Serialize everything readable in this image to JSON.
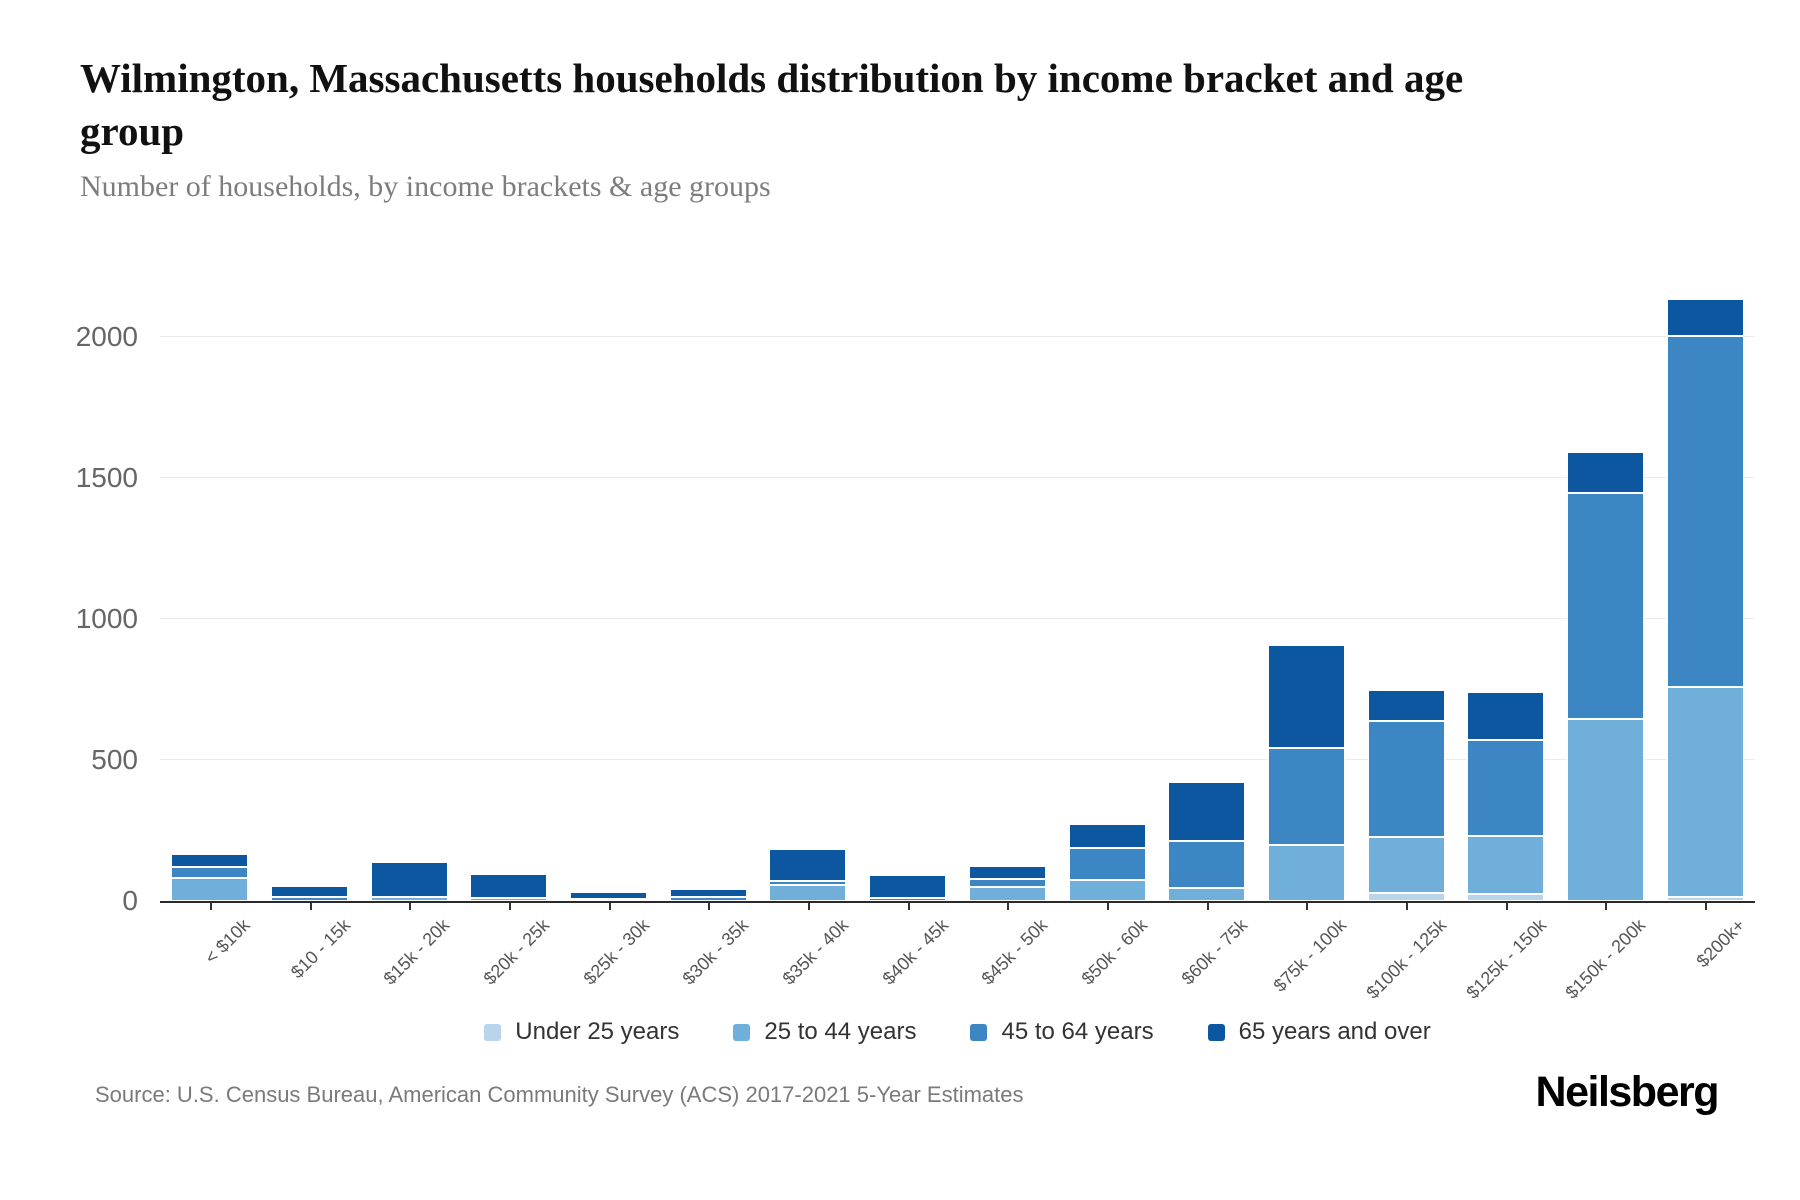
{
  "header": {
    "title": "Wilmington, Massachusetts households distribution by income bracket and age group",
    "subtitle": "Number of households, by income brackets & age groups"
  },
  "chart_data": {
    "type": "bar",
    "stacked": true,
    "title": "Wilmington, Massachusetts households distribution by income bracket and age group",
    "subtitle": "Number of households, by income brackets & age groups",
    "xlabel": "",
    "ylabel": "Number of households",
    "categories": [
      "< $10k",
      "$10 - 15k",
      "$15k - 20k",
      "$20k - 25k",
      "$25k - 30k",
      "$30k - 35k",
      "$35k - 40k",
      "$40k - 45k",
      "$45k - 50k",
      "$50k - 60k",
      "$60k - 75k",
      "$75k - 100k",
      "$100k - 125k",
      "$125k - 150k",
      "$150k - 200k",
      "$200k+"
    ],
    "series": [
      {
        "name": "Under 25 years",
        "color": "#b9d5ea",
        "values": [
          0,
          0,
          0,
          0,
          0,
          0,
          0,
          0,
          0,
          0,
          0,
          0,
          30,
          25,
          0,
          15
        ]
      },
      {
        "name": "25 to 44 years",
        "color": "#6fafd9",
        "values": [
          80,
          0,
          15,
          10,
          0,
          0,
          55,
          0,
          50,
          75,
          45,
          200,
          200,
          205,
          645,
          745
        ]
      },
      {
        "name": "45 to 64 years",
        "color": "#3b86c3",
        "values": [
          40,
          15,
          0,
          0,
          5,
          15,
          15,
          10,
          30,
          115,
          165,
          345,
          410,
          340,
          800,
          1245
        ]
      },
      {
        "name": "65 years and over",
        "color": "#0d57a1",
        "values": [
          45,
          40,
          125,
          85,
          25,
          30,
          115,
          80,
          45,
          85,
          210,
          365,
          110,
          170,
          145,
          130
        ]
      }
    ],
    "totals": [
      165,
      55,
      140,
      95,
      30,
      45,
      185,
      90,
      125,
      275,
      420,
      910,
      750,
      740,
      1590,
      2135
    ],
    "yticks": [
      0,
      500,
      1000,
      1500,
      2000
    ],
    "ylim": [
      0,
      2180
    ],
    "grid": true,
    "gridline_color": "#ececec",
    "axis_color": "#2a2a2a",
    "legend_position": "bottom"
  },
  "footer": {
    "source": "Source: U.S. Census Bureau, American Community Survey (ACS) 2017-2021 5-Year Estimates",
    "logo": "Neilsberg"
  }
}
